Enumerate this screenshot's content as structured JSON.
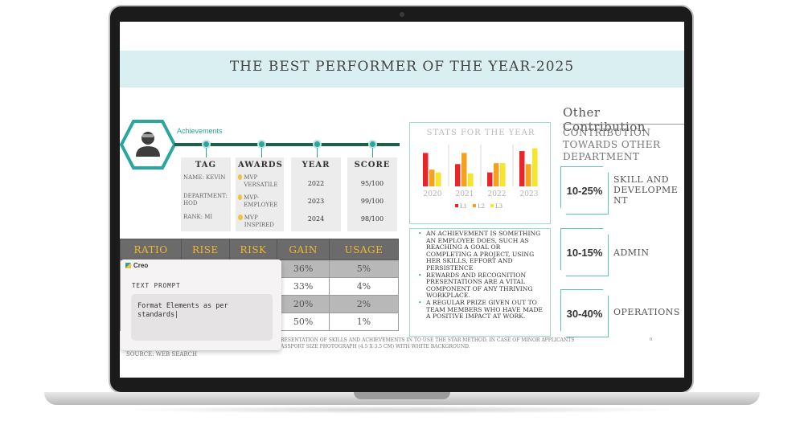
{
  "slide": {
    "title": "THE BEST PERFORMER OF THE YEAR-2025",
    "achievements_label": "Achievements",
    "columns": [
      {
        "head": "TAG",
        "rows": [
          "NAME: KEVIN",
          "DEPARTMENT: HOD",
          "RANK: MI"
        ]
      },
      {
        "head": "AWARDS",
        "rows": [
          "MVP VERSATILE",
          "MVP- EMPLOYEE",
          "MVP INSPIRED"
        ]
      },
      {
        "head": "YEAR",
        "rows": [
          "2022",
          "2023",
          "2024"
        ]
      },
      {
        "head": "SCORE",
        "rows": [
          "95/100",
          "99/100",
          "98/100"
        ]
      }
    ],
    "table": {
      "headers": [
        "RATIO",
        "RISE",
        "RISK",
        "GAIN",
        "USAGE"
      ],
      "rows": [
        [
          "",
          "",
          "",
          "36%",
          "5%"
        ],
        [
          "",
          "",
          "",
          "33%",
          "4%"
        ],
        [
          "",
          "",
          "",
          "20%",
          "2%"
        ],
        [
          "",
          "",
          "",
          "50%",
          "1%"
        ]
      ]
    },
    "bullets": [
      "AN ACHIEVEMENT IS SOMETHING AN EMPLOYEE DOES, SUCH AS REACHING A GOAL OR COMPLETING A PROJECT, USING HER SKILLS, EFFORT AND PERSISTENCE",
      "REWARDS AND RECOGNITION PRESENTATIONS ARE A VITAL COMPONENT OF ANY THRIVING WORKPLACE.",
      "A REGULAR PRIZE GIVEN OUT TO TEAM MEMBERS WHO HAVE MADE A POSITIVE IMPACT AT WORK."
    ],
    "footnote_line1": "RESENTATION OF SKILLS AND ACHIEVEMENTS IN TO USE THE STAR METHOD. IN CASE OF MINOR APPLICANTS",
    "footnote_line2": "ASSPORT SIZE PHOTOGRAPH (4.5 X 3.5 CM) WITH WHITE BACKGROUND.",
    "footnote_zero": "0",
    "source": "SOURCE: WEB SEARCH",
    "other": {
      "title": "Other Contribution",
      "subtitle": "CONTRIBUTION TOWARDS OTHER DEPARTMENT",
      "items": [
        {
          "pct": "10-25%",
          "label": "SKILL AND DEVELOPME NT"
        },
        {
          "pct": "10-15%",
          "label": "ADMIN"
        },
        {
          "pct": "30-40%",
          "label": "OPERATIONS"
        }
      ]
    }
  },
  "prompt": {
    "brand": "Creo",
    "label": "TEXT PROMPT",
    "value": "Format Elements as per standards|"
  },
  "chart_data": {
    "type": "bar",
    "title": "STATS FOR THE YEAR",
    "categories": [
      "2020",
      "2021",
      "2022",
      "2023"
    ],
    "series": [
      {
        "name": "L1",
        "color": "#e8262a",
        "values": [
          3.6,
          2.4,
          1.5,
          3.8
        ]
      },
      {
        "name": "L2",
        "color": "#f4a21b",
        "values": [
          1.8,
          3.6,
          2.5,
          2.4
        ]
      },
      {
        "name": "L3",
        "color": "#f5e52c",
        "values": [
          1.5,
          1.4,
          2.5,
          4.1
        ]
      }
    ],
    "ylim": [
      0,
      4.5
    ],
    "legend": "bottom",
    "grid": false
  },
  "colors": {
    "accent": "#2aa6a0",
    "timeline": "#1f5f4e",
    "title_band": "#d9eff1",
    "table_header": "#6b6b6b",
    "table_header_text": "#f0b72a"
  }
}
